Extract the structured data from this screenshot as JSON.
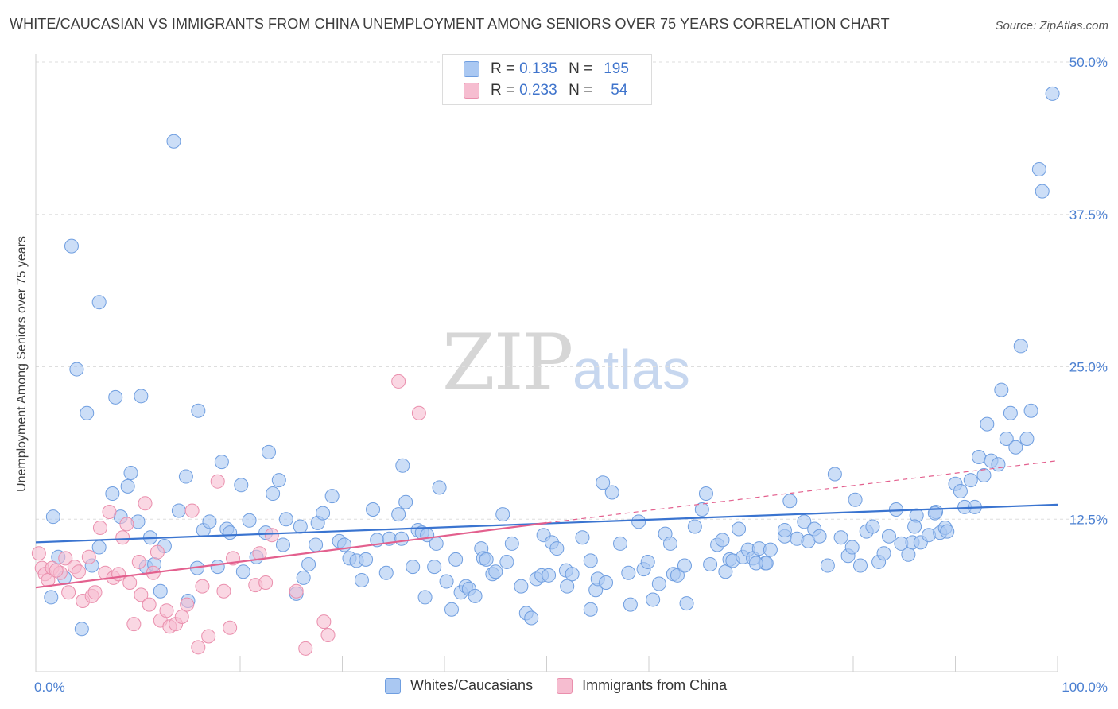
{
  "title": "WHITE/CAUCASIAN VS IMMIGRANTS FROM CHINA UNEMPLOYMENT AMONG SENIORS OVER 75 YEARS CORRELATION CHART",
  "source": "Source: ZipAtlas.com",
  "watermark": {
    "zip": "ZIP",
    "atlas": "atlas"
  },
  "legend": {
    "rows": [
      {
        "r_label": "R =",
        "r_value": "0.135",
        "n_label": "N =",
        "n_value": "195"
      },
      {
        "r_label": "R =",
        "r_value": "0.233",
        "n_label": "N =",
        "n_value": "54"
      }
    ]
  },
  "bottom_legend": {
    "series1": "Whites/Caucasians",
    "series2": "Immigrants from China"
  },
  "colors": {
    "blue_fill": "#aac8f2",
    "blue_stroke": "#6f9ee0",
    "blue_line": "#3a74d0",
    "pink_fill": "#f6bdd0",
    "pink_stroke": "#ea8fad",
    "pink_line": "#e3608e",
    "tick": "#4a7fd1",
    "grid": "#dedede"
  },
  "chart_data": {
    "type": "scatter",
    "title": "WHITE/CAUCASIAN VS IMMIGRANTS FROM CHINA UNEMPLOYMENT AMONG SENIORS OVER 75 YEARS CORRELATION CHART",
    "xlabel": "",
    "ylabel": "Unemployment Among Seniors over 75 years",
    "xlim": [
      0,
      100
    ],
    "ylim": [
      0,
      50
    ],
    "x_tick_labels": [
      "0.0%",
      "100.0%"
    ],
    "y_ticks": [
      12.5,
      25.0,
      37.5,
      50.0
    ],
    "y_tick_labels": [
      "12.5%",
      "25.0%",
      "37.5%",
      "50.0%"
    ],
    "series": [
      {
        "name": "Whites/Caucasians",
        "r": 0.135,
        "n": 195,
        "trend": {
          "x0": 0,
          "y0": 10.6,
          "x1": 100,
          "y1": 13.7
        },
        "points": [
          [
            1.7,
            12.7
          ],
          [
            1.5,
            6.1
          ],
          [
            2.2,
            9.4
          ],
          [
            2.8,
            7.7
          ],
          [
            3.5,
            34.9
          ],
          [
            4,
            24.8
          ],
          [
            4.5,
            3.5
          ],
          [
            5,
            21.2
          ],
          [
            5.5,
            8.7
          ],
          [
            6.2,
            10.2
          ],
          [
            6.2,
            30.3
          ],
          [
            7.5,
            14.6
          ],
          [
            7.8,
            22.5
          ],
          [
            8.3,
            12.7
          ],
          [
            9,
            15.2
          ],
          [
            9.3,
            16.3
          ],
          [
            10,
            12.3
          ],
          [
            10.3,
            22.6
          ],
          [
            10.8,
            8.6
          ],
          [
            11.2,
            11
          ],
          [
            11.6,
            8.8
          ],
          [
            12.2,
            6.6
          ],
          [
            12.6,
            10.3
          ],
          [
            13.5,
            43.5
          ],
          [
            14,
            13.2
          ],
          [
            14.7,
            16
          ],
          [
            14.9,
            5.8
          ],
          [
            15.8,
            8.5
          ],
          [
            15.9,
            21.4
          ],
          [
            16.4,
            11.6
          ],
          [
            17,
            12.3
          ],
          [
            17.8,
            8.6
          ],
          [
            18.2,
            17.2
          ],
          [
            18.7,
            11.7
          ],
          [
            19,
            11.4
          ],
          [
            20.1,
            15.3
          ],
          [
            20.3,
            8.2
          ],
          [
            20.9,
            12.4
          ],
          [
            21.6,
            9.4
          ],
          [
            22.5,
            11.4
          ],
          [
            22.8,
            18
          ],
          [
            23.2,
            14.6
          ],
          [
            23.8,
            15.7
          ],
          [
            24.5,
            12.5
          ],
          [
            24.2,
            10.4
          ],
          [
            25.5,
            6.4
          ],
          [
            25.9,
            11.9
          ],
          [
            26.2,
            7.7
          ],
          [
            26.7,
            8.8
          ],
          [
            27.4,
            10.4
          ],
          [
            27.6,
            12.2
          ],
          [
            28.1,
            13
          ],
          [
            29,
            14.4
          ],
          [
            29.7,
            10.7
          ],
          [
            30.2,
            10.4
          ],
          [
            30.7,
            9.3
          ],
          [
            31.4,
            9.1
          ],
          [
            31.9,
            7.5
          ],
          [
            32.3,
            9.2
          ],
          [
            33,
            13.3
          ],
          [
            33.4,
            10.8
          ],
          [
            34.3,
            8.1
          ],
          [
            34.6,
            10.9
          ],
          [
            35.5,
            12.9
          ],
          [
            35.8,
            10.9
          ],
          [
            35.9,
            16.9
          ],
          [
            36.2,
            13.9
          ],
          [
            36.9,
            8.6
          ],
          [
            37.4,
            11.6
          ],
          [
            37.8,
            11.4
          ],
          [
            38.1,
            6.1
          ],
          [
            38.3,
            11.2
          ],
          [
            39,
            8.6
          ],
          [
            39.5,
            15.1
          ],
          [
            39.2,
            10.5
          ],
          [
            40.2,
            7.4
          ],
          [
            40.7,
            5.1
          ],
          [
            41.1,
            9.2
          ],
          [
            41.6,
            6.5
          ],
          [
            42.1,
            7.0
          ],
          [
            42.4,
            6.8
          ],
          [
            43,
            6.2
          ],
          [
            43.6,
            10.1
          ],
          [
            43.8,
            9.3
          ],
          [
            44.1,
            9.2
          ],
          [
            44.7,
            8.0
          ],
          [
            45,
            8.2
          ],
          [
            45.7,
            12.9
          ],
          [
            46.1,
            9.0
          ],
          [
            46.6,
            10.5
          ],
          [
            47.5,
            7.0
          ],
          [
            48,
            4.8
          ],
          [
            48.5,
            4.4
          ],
          [
            49,
            7.6
          ],
          [
            49.5,
            7.9
          ],
          [
            49.7,
            11.2
          ],
          [
            50.2,
            7.9
          ],
          [
            50.5,
            10.6
          ],
          [
            51,
            10.1
          ],
          [
            52,
            7.0
          ],
          [
            51.9,
            8.3
          ],
          [
            52.5,
            8.0
          ],
          [
            53.5,
            11.0
          ],
          [
            54.3,
            9.1
          ],
          [
            54.3,
            5.1
          ],
          [
            54.8,
            6.7
          ],
          [
            55,
            7.6
          ],
          [
            55.5,
            15.5
          ],
          [
            55.8,
            7.3
          ],
          [
            56.4,
            14.7
          ],
          [
            57.2,
            10.5
          ],
          [
            58,
            8.1
          ],
          [
            58.2,
            5.5
          ],
          [
            59,
            12.3
          ],
          [
            59.5,
            8.4
          ],
          [
            59.9,
            9.0
          ],
          [
            60.4,
            5.9
          ],
          [
            61,
            7.2
          ],
          [
            61.6,
            11.3
          ],
          [
            62.1,
            10.5
          ],
          [
            62.4,
            8.0
          ],
          [
            62.8,
            7.9
          ],
          [
            63.5,
            8.7
          ],
          [
            63.7,
            5.6
          ],
          [
            64.5,
            11.9
          ],
          [
            65.2,
            13.3
          ],
          [
            65.6,
            14.6
          ],
          [
            66,
            8.8
          ],
          [
            66.7,
            10.4
          ],
          [
            67.2,
            10.8
          ],
          [
            67.5,
            8.2
          ],
          [
            67.9,
            9.2
          ],
          [
            68.2,
            9.1
          ],
          [
            68.8,
            11.7
          ],
          [
            69.2,
            9.4
          ],
          [
            69.7,
            10.0
          ],
          [
            70.2,
            9.3
          ],
          [
            70.8,
            10.1
          ],
          [
            71.4,
            8.9
          ],
          [
            71.5,
            8.9
          ],
          [
            71.9,
            10.0
          ],
          [
            73.3,
            11.1
          ],
          [
            73.3,
            11.6
          ],
          [
            73.8,
            14.0
          ],
          [
            74.5,
            10.9
          ],
          [
            75.2,
            12.3
          ],
          [
            75.6,
            10.7
          ],
          [
            76.2,
            11.7
          ],
          [
            76.7,
            11.1
          ],
          [
            77.5,
            8.7
          ],
          [
            78.2,
            16.2
          ],
          [
            78.8,
            11.0
          ],
          [
            79.5,
            9.5
          ],
          [
            79.9,
            10.2
          ],
          [
            80.2,
            14.1
          ],
          [
            80.7,
            8.7
          ],
          [
            81.3,
            11.5
          ],
          [
            81.9,
            11.9
          ],
          [
            82.5,
            9.0
          ],
          [
            83,
            9.7
          ],
          [
            83.5,
            11.1
          ],
          [
            84.2,
            13.3
          ],
          [
            84.7,
            10.5
          ],
          [
            85.4,
            9.6
          ],
          [
            85.8,
            10.6
          ],
          [
            86.2,
            12.8
          ],
          [
            86.6,
            10.6
          ],
          [
            87.4,
            11.2
          ],
          [
            88.1,
            13.1
          ],
          [
            88.5,
            11.4
          ],
          [
            89,
            11.8
          ],
          [
            89.2,
            11.5
          ],
          [
            90,
            15.4
          ],
          [
            90.5,
            14.8
          ],
          [
            90.9,
            13.5
          ],
          [
            91.5,
            15.7
          ],
          [
            91.9,
            13.5
          ],
          [
            92.3,
            17.6
          ],
          [
            92.8,
            16.1
          ],
          [
            93.1,
            20.3
          ],
          [
            93.5,
            17.3
          ],
          [
            94.2,
            17.0
          ],
          [
            94.5,
            23.1
          ],
          [
            95,
            19.1
          ],
          [
            95.4,
            21.2
          ],
          [
            95.9,
            18.4
          ],
          [
            96.4,
            26.7
          ],
          [
            97,
            19.1
          ],
          [
            97.4,
            21.4
          ],
          [
            98.2,
            41.2
          ],
          [
            98.5,
            39.4
          ],
          [
            99.5,
            47.4
          ],
          [
            88.0,
            13.0
          ],
          [
            86.0,
            11.9
          ],
          [
            70.5,
            8.9
          ]
        ]
      },
      {
        "name": "Immigrants from China",
        "r": 0.233,
        "n": 54,
        "trend": {
          "x0": 0,
          "y0": 6.9,
          "x1": 50,
          "y1": 12.2,
          "dashed_to": {
            "x": 100,
            "y": 17.3
          }
        },
        "points": [
          [
            0.3,
            9.7
          ],
          [
            0.6,
            8.5
          ],
          [
            0.9,
            8.0
          ],
          [
            1.2,
            7.5
          ],
          [
            1.6,
            8.5
          ],
          [
            2.4,
            8.1
          ],
          [
            2.9,
            9.3
          ],
          [
            3.2,
            6.5
          ],
          [
            3.8,
            8.6
          ],
          [
            4.6,
            5.8
          ],
          [
            5.2,
            9.4
          ],
          [
            5.5,
            6.2
          ],
          [
            5.8,
            6.5
          ],
          [
            6.3,
            11.8
          ],
          [
            6.8,
            8.1
          ],
          [
            7.2,
            13.1
          ],
          [
            7.6,
            7.7
          ],
          [
            8.1,
            8.0
          ],
          [
            8.5,
            11.0
          ],
          [
            8.9,
            12.1
          ],
          [
            9.2,
            7.3
          ],
          [
            9.6,
            3.9
          ],
          [
            10.1,
            9.0
          ],
          [
            10.3,
            6.3
          ],
          [
            10.7,
            13.8
          ],
          [
            11.1,
            5.5
          ],
          [
            11.5,
            8.1
          ],
          [
            11.9,
            9.8
          ],
          [
            12.2,
            4.2
          ],
          [
            12.8,
            5.0
          ],
          [
            13.1,
            3.7
          ],
          [
            13.7,
            3.9
          ],
          [
            14.3,
            4.5
          ],
          [
            14.8,
            5.5
          ],
          [
            15.3,
            13.2
          ],
          [
            15.9,
            2.0
          ],
          [
            16.3,
            7.0
          ],
          [
            16.9,
            2.9
          ],
          [
            17.8,
            15.6
          ],
          [
            18.4,
            6.6
          ],
          [
            19,
            3.6
          ],
          [
            19.3,
            9.3
          ],
          [
            21.5,
            7.1
          ],
          [
            21.9,
            9.7
          ],
          [
            22.5,
            7.3
          ],
          [
            23.1,
            11.2
          ],
          [
            25.5,
            6.6
          ],
          [
            26.4,
            1.9
          ],
          [
            28.2,
            4.1
          ],
          [
            28.6,
            3.0
          ],
          [
            35.5,
            23.8
          ],
          [
            37.5,
            21.2
          ],
          [
            2.0,
            8.3
          ],
          [
            4.2,
            8.2
          ]
        ]
      }
    ]
  }
}
